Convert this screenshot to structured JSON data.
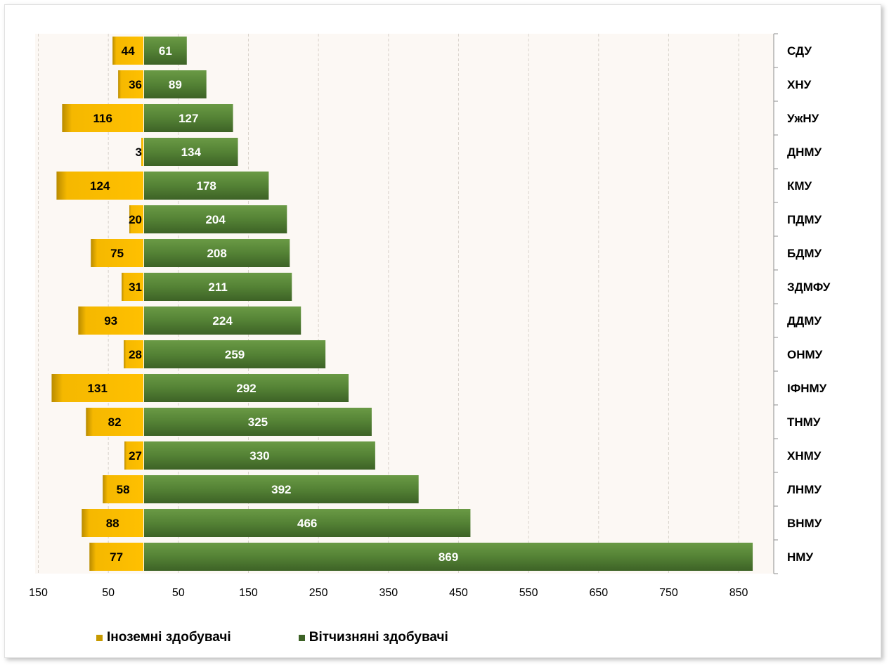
{
  "chart_data": {
    "type": "bar",
    "orientation": "horizontal",
    "stacking": "diverging",
    "categories": [
      "СДУ",
      "ХНУ",
      "УжНУ",
      "ДНМУ",
      "КМУ",
      "ПДМУ",
      "БДМУ",
      "ЗДМФУ",
      "ДДМУ",
      "ОНМУ",
      "ІФНМУ",
      "ТНМУ",
      "ХНМУ",
      "ЛНМУ",
      "ВНМУ",
      "НМУ"
    ],
    "series": [
      {
        "name": "Іноземні здобувачі",
        "color": "#f5b800",
        "values": [
          44,
          36,
          116,
          3,
          124,
          20,
          75,
          31,
          93,
          28,
          131,
          82,
          27,
          58,
          88,
          77
        ]
      },
      {
        "name": "Вітчизняні здобувачі",
        "color": "#548235",
        "values": [
          61,
          89,
          127,
          134,
          178,
          204,
          208,
          211,
          224,
          259,
          292,
          325,
          330,
          392,
          466,
          869
        ]
      }
    ],
    "tick_labels": [
      "150",
      "50",
      "50",
      "150",
      "250",
      "350",
      "450",
      "550",
      "650",
      "750",
      "850"
    ],
    "xlim": [
      -150,
      900
    ],
    "grid": true,
    "legend_position": "bottom",
    "title": "",
    "xlabel": "",
    "ylabel": ""
  }
}
